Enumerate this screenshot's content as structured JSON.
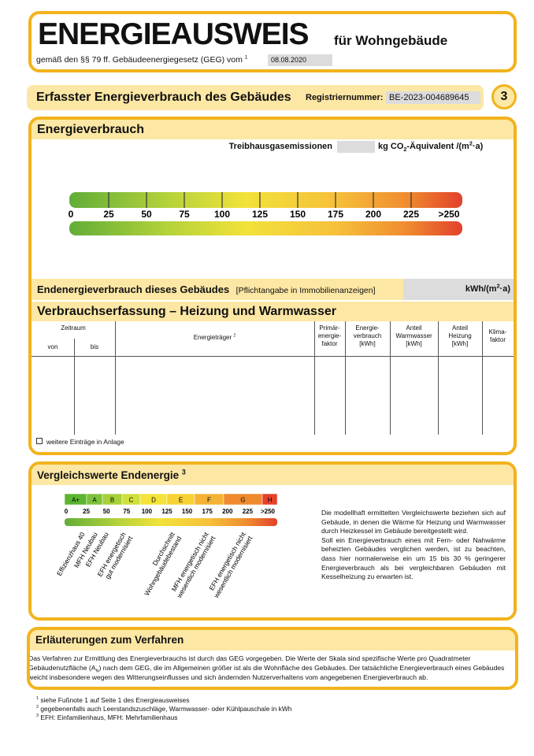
{
  "header": {
    "title": "ENERGIEAUSWEIS",
    "subtitle": "für Wohngebäude",
    "legal": "gemäß den §§ 79 ff. Gebäudeenergiegesetz (GEG) vom",
    "legal_note": "1",
    "date": "08.08.2020"
  },
  "section": {
    "title": "Erfasster Energieverbrauch des Gebäudes",
    "registration_label": "Registriernummer:",
    "registration_number": "BE-2023-004689645",
    "page": 3
  },
  "energy": {
    "title": "Energieverbrauch",
    "ghg_label": "Treibhausgasemissionen",
    "ghg_unit": [
      "kg CO",
      "2",
      "-Äquivalent /(m",
      "2",
      "·a)"
    ],
    "scale": [
      0,
      25,
      50,
      75,
      100,
      125,
      150,
      175,
      200,
      225,
      ">250"
    ]
  },
  "final_energy": {
    "label": "Endenergieverbrauch dieses Gebäudes",
    "note": "[Pflichtangabe in Immobilienanzeigen]",
    "unit": [
      "kWh/(m",
      "2",
      "·a)"
    ]
  },
  "consumption": {
    "title": "Verbrauchserfassung – Heizung und Warmwasser",
    "columns": {
      "period": "Zeitraum",
      "from": "von",
      "to": "bis",
      "carrier": "Energieträger",
      "carrier_note": "2",
      "primary_factor": [
        "Primär-",
        "energie-",
        "faktor"
      ],
      "consumption": [
        "Energie-",
        "verbrauch",
        "[kWh]"
      ],
      "hot_water": [
        "Anteil",
        "Warmwasser",
        "[kWh]"
      ],
      "heating": [
        "Anteil",
        "Heizung",
        "[kWh]"
      ],
      "climate_factor": [
        "Klima-",
        "faktor"
      ]
    },
    "more_entries": "weitere Einträge in Anlage"
  },
  "comparison": {
    "title": "Vergleichswerte Endenergie",
    "title_note": "3",
    "classes": [
      "A+",
      "A",
      "B",
      "C",
      "D",
      "E",
      "F",
      "G",
      "H"
    ],
    "scale": [
      0,
      25,
      50,
      75,
      100,
      125,
      150,
      175,
      200,
      225,
      ">250"
    ],
    "references": [
      [
        "Effizienzhaus 40"
      ],
      [
        "MFH Neubau"
      ],
      [
        "EFH Neubau"
      ],
      [
        "EFH energetisch",
        "gut modernisiert"
      ],
      [
        "Durchschnitt",
        "Wohngebäudebestand"
      ],
      [
        "MFH energetisch nicht",
        "wesentlich modernisiert"
      ],
      [
        "EFH energetisch nicht",
        "wesentlich modernisiert"
      ]
    ],
    "notes": [
      "Die modellhaft ermittelten Vergleichswerte beziehen sich auf Gebäude, in denen die Wärme für Heizung und Warmwasser durch Heizkessel im Gebäude bereitgestellt wird.",
      "Soll ein Energieverbrauch eines mit Fern- oder Nahwärme beheizten Gebäudes verglichen werden, ist zu beachten, dass hier normalerweise ein um 15 bis 30 % geringerer Energieverbrauch als bei vergleichbaren Gebäuden mit Kesselheizung zu erwarten ist."
    ]
  },
  "explanation": {
    "title": "Erläuterungen zum Verfahren",
    "text": [
      "Das Verfahren zur Ermittlung des Energieverbrauchs ist durch das GEG vorgegeben. Die Werte der Skala sind spezifische Werte pro Quadratmeter Gebäudenutzfläche (A",
      "N",
      ") nach dem GEG, die im Allgemeinen größer ist als die Wohnfläche des Gebäudes. Der tatsächliche Energieverbrauch eines Gebäudes weicht insbesondere wegen des Witterungseinflusses und sich ändernden Nutzerverhaltens vom angegebenen Energieverbrauch ab."
    ]
  },
  "footnotes": [
    {
      "mark": "1",
      "text": "siehe Fußnote 1 auf Seite 1 des Energieausweises"
    },
    {
      "mark": "2",
      "text": "gegebenenfalls auch Leerstandszuschläge, Warmwasser- oder Kühlpauschale in kWh"
    },
    {
      "mark": "3",
      "text": "EFH: Einfamilienhaus, MFH: Mehrfamilienhaus"
    }
  ]
}
